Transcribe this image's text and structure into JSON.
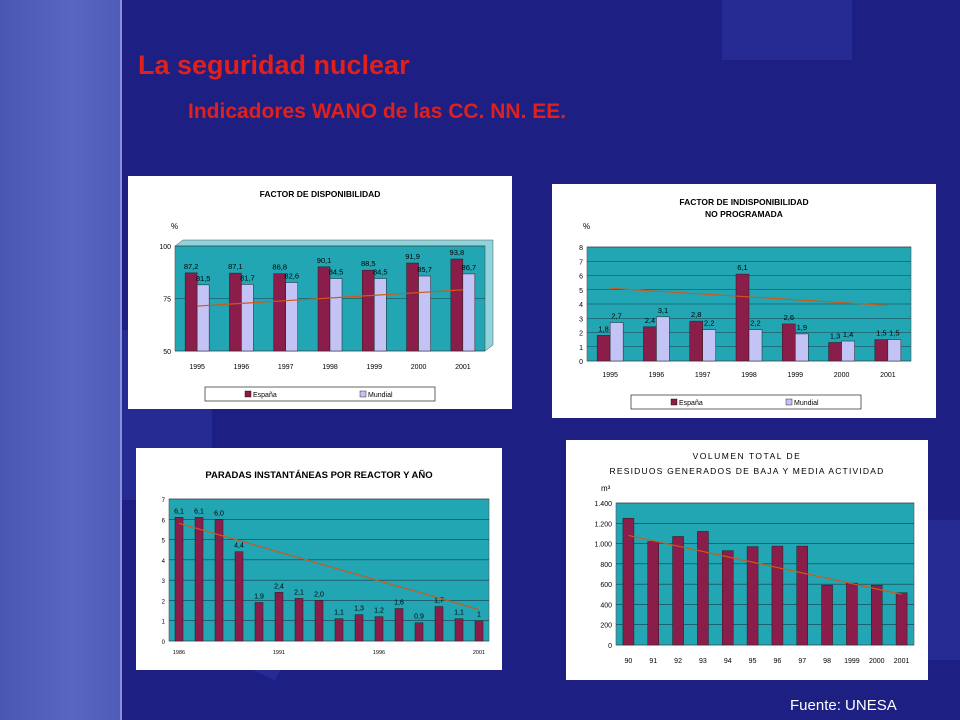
{
  "slide": {
    "title": "La seguridad nuclear",
    "subtitle": "Indicadores WANO de las CC. NN. EE.",
    "source": "Fuente: UNESA"
  },
  "colors": {
    "bg": "#1d1f83",
    "title": "#e0201a",
    "plot": "#22a6b3",
    "spain": "#8b1d4a",
    "world": "#c3c3f5",
    "trend": "#cc5a1a"
  },
  "chart_data": [
    {
      "type": "bar",
      "title": "FACTOR DE DISPONIBILIDAD",
      "title2": "",
      "unit": "%",
      "categories": [
        "1995",
        "1996",
        "1997",
        "1998",
        "1999",
        "2000",
        "2001"
      ],
      "series": [
        {
          "name": "España",
          "values": [
            87.2,
            87.1,
            86.8,
            90.1,
            88.5,
            91.9,
            93.8
          ]
        },
        {
          "name": "Mundial",
          "values": [
            81.5,
            81.7,
            82.6,
            84.5,
            84.5,
            85.7,
            86.7
          ]
        }
      ],
      "labels": [
        [
          "87,2",
          "87,1",
          "86,8",
          "90,1",
          "88,5",
          "91,9",
          "93,8"
        ],
        [
          "81,5",
          "81,7",
          "82,6",
          "84,5",
          "84,5",
          "85,7",
          "86,7"
        ]
      ],
      "ylim": [
        50,
        100
      ],
      "yticks": [
        50,
        75,
        100
      ],
      "grid": true,
      "trend": [
        71.4,
        79.1
      ],
      "legend": "bottom"
    },
    {
      "type": "bar",
      "title": "FACTOR DE INDISPONIBILIDAD",
      "title2": "NO PROGRAMADA",
      "unit": "%",
      "categories": [
        "1995",
        "1996",
        "1997",
        "1998",
        "1999",
        "2000",
        "2001"
      ],
      "series": [
        {
          "name": "España",
          "values": [
            1.8,
            2.4,
            2.8,
            6.1,
            2.6,
            1.3,
            1.5
          ]
        },
        {
          "name": "Mundial",
          "values": [
            2.7,
            3.1,
            2.2,
            2.2,
            1.9,
            1.4,
            1.5
          ]
        }
      ],
      "labels": [
        [
          "1,8",
          "2,4",
          "2,8",
          "6,1",
          "2,6",
          "1,3",
          "1,5"
        ],
        [
          "2,7",
          "3,1",
          "2,2",
          "2,2",
          "1,9",
          "1,4",
          "1,5"
        ]
      ],
      "ylim": [
        0,
        8
      ],
      "yticks": [
        0,
        1,
        2,
        3,
        4,
        5,
        6,
        7,
        8
      ],
      "grid": true,
      "trend": [
        5.1,
        3.9
      ],
      "legend": "bottom"
    },
    {
      "type": "bar",
      "title": "PARADAS INSTANTÁNEAS POR REACTOR Y AÑO",
      "title2": "",
      "unit": "",
      "categories": [
        "1986",
        "",
        "",
        "",
        "",
        "1991",
        "",
        "",
        "",
        "",
        "1996",
        "",
        "",
        "",
        "",
        "2001"
      ],
      "series": [
        {
          "name": "",
          "values": [
            6.1,
            6.1,
            6.0,
            4.4,
            1.9,
            2.4,
            2.1,
            2.0,
            1.1,
            1.3,
            1.2,
            1.6,
            0.9,
            1.7,
            1.1,
            1.0
          ]
        }
      ],
      "labels": [
        [
          "6,1",
          "6,1",
          "6,0",
          "4,4",
          "1,9",
          "2,4",
          "2,1",
          "2,0",
          "1,1",
          "1,3",
          "1,2",
          "1,6",
          "0,9",
          "1,7",
          "1,1",
          "1"
        ]
      ],
      "ylim": [
        0,
        7
      ],
      "yticks": [
        0,
        1,
        2,
        3,
        4,
        5,
        6,
        7
      ],
      "grid": true,
      "trend": [
        5.8,
        1.55
      ],
      "legend": "none"
    },
    {
      "type": "bar",
      "title": "VOLUMEN TOTAL DE",
      "title2": "RESIDUOS GENERADOS DE BAJA Y MEDIA ACTIVIDAD",
      "unit": "m³",
      "categories": [
        "90",
        "91",
        "92",
        "93",
        "94",
        "95",
        "96",
        "97",
        "98",
        "1999",
        "2000",
        "2001"
      ],
      "series": [
        {
          "name": "",
          "values": [
            1250,
            1020,
            1070,
            1120,
            930,
            970,
            975,
            975,
            590,
            610,
            590,
            515
          ]
        }
      ],
      "labels": [
        []
      ],
      "ylim": [
        0,
        1400
      ],
      "yticks": [
        0,
        200,
        400,
        600,
        800,
        1000,
        1200,
        1400
      ],
      "yticklabels": [
        "0",
        "200",
        "400",
        "600",
        "800",
        "1.000",
        "1.200",
        "1.400"
      ],
      "grid": true,
      "trend": [
        1080,
        500
      ],
      "legend": "none"
    }
  ]
}
